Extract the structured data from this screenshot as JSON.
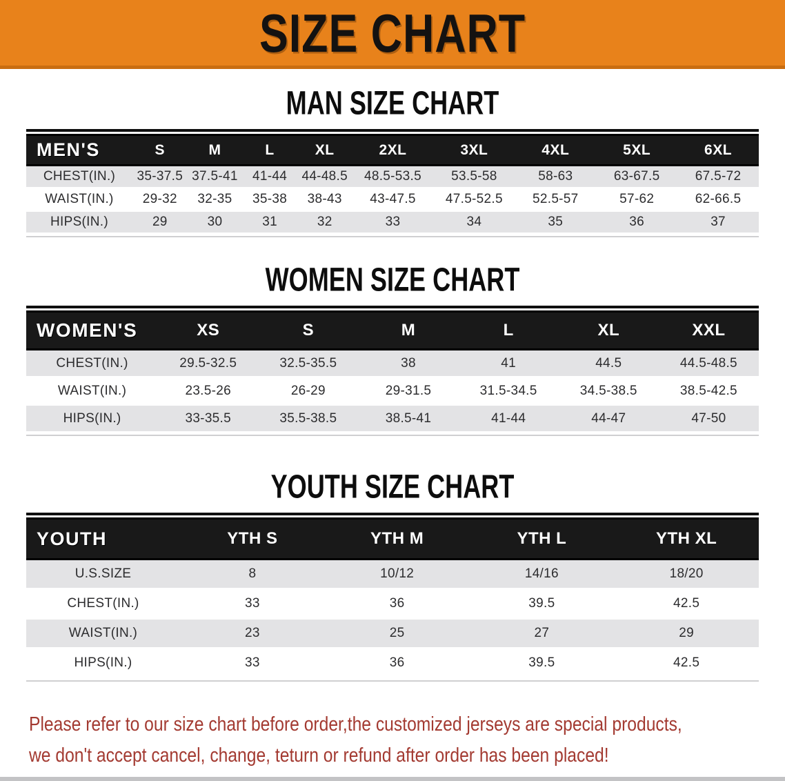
{
  "banner": {
    "title": "SIZE CHART"
  },
  "colors": {
    "banner_bg": "#e8821b",
    "banner_border": "#c96d11",
    "table_header_bg": "#191919",
    "row_alt_bg": "#e3e3e5",
    "footer_text": "#a33a31"
  },
  "sections": [
    {
      "id": "men",
      "heading": "MAN SIZE CHART",
      "corner_label": "MEN'S",
      "columns": [
        "S",
        "M",
        "L",
        "XL",
        "2XL",
        "3XL",
        "4XL",
        "5XL",
        "6XL"
      ],
      "rows": [
        {
          "label": "CHEST(IN.)",
          "values": [
            "35-37.5",
            "37.5-41",
            "41-44",
            "44-48.5",
            "48.5-53.5",
            "53.5-58",
            "58-63",
            "63-67.5",
            "67.5-72"
          ]
        },
        {
          "label": "WAIST(IN.)",
          "values": [
            "29-32",
            "32-35",
            "35-38",
            "38-43",
            "43-47.5",
            "47.5-52.5",
            "52.5-57",
            "57-62",
            "62-66.5"
          ]
        },
        {
          "label": "HIPS(IN.)",
          "values": [
            "29",
            "30",
            "31",
            "32",
            "33",
            "34",
            "35",
            "36",
            "37"
          ]
        }
      ]
    },
    {
      "id": "women",
      "heading": "WOMEN SIZE CHART",
      "corner_label": "WOMEN'S",
      "columns": [
        "XS",
        "S",
        "M",
        "L",
        "XL",
        "XXL"
      ],
      "rows": [
        {
          "label": "CHEST(IN.)",
          "values": [
            "29.5-32.5",
            "32.5-35.5",
            "38",
            "41",
            "44.5",
            "44.5-48.5"
          ]
        },
        {
          "label": "WAIST(IN.)",
          "values": [
            "23.5-26",
            "26-29",
            "29-31.5",
            "31.5-34.5",
            "34.5-38.5",
            "38.5-42.5"
          ]
        },
        {
          "label": "HIPS(IN.)",
          "values": [
            "33-35.5",
            "35.5-38.5",
            "38.5-41",
            "41-44",
            "44-47",
            "47-50"
          ]
        }
      ]
    },
    {
      "id": "youth",
      "heading": "YOUTH SIZE CHART",
      "corner_label": "YOUTH",
      "columns": [
        "YTH S",
        "YTH M",
        "YTH L",
        "YTH XL"
      ],
      "rows": [
        {
          "label": "U.S.SIZE",
          "values": [
            "8",
            "10/12",
            "14/16",
            "18/20"
          ]
        },
        {
          "label": "CHEST(IN.)",
          "values": [
            "33",
            "36",
            "39.5",
            "42.5"
          ]
        },
        {
          "label": "WAIST(IN.)",
          "values": [
            "23",
            "25",
            "27",
            "29"
          ]
        },
        {
          "label": "HIPS(IN.)",
          "values": [
            "33",
            "36",
            "39.5",
            "42.5"
          ]
        }
      ]
    }
  ],
  "footer": {
    "line1": "Please refer to our size chart before order,the customized jerseys are special products,",
    "line2": "we don't accept cancel, change, teturn or refund after order has been placed!"
  }
}
